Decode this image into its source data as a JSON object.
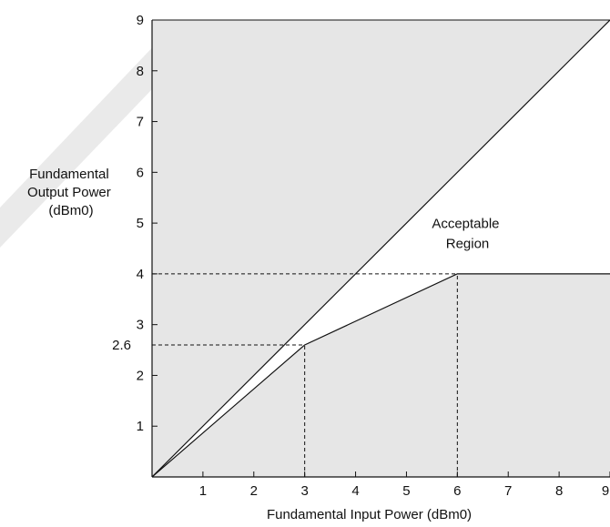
{
  "chart_data": {
    "type": "line",
    "xlabel": "Fundamental Input Power (dBm0)",
    "ylabel_lines": [
      "Fundamental",
      "Output Power",
      "(dBm0)"
    ],
    "xlim": [
      0,
      9
    ],
    "ylim": [
      0,
      9
    ],
    "x_ticks": [
      1,
      2,
      3,
      4,
      5,
      6,
      7,
      8,
      9
    ],
    "y_ticks": [
      1,
      2,
      3,
      4,
      5,
      6,
      7,
      8,
      9
    ],
    "extra_y_tick_label": "2.6",
    "grid": false,
    "region_label_lines": [
      "Acceptable",
      "Region"
    ],
    "region_label_position": [
      6.2,
      4.9
    ],
    "series": [
      {
        "values_xy": [
          [
            0,
            0
          ],
          [
            9,
            9
          ]
        ],
        "style": "solid"
      },
      {
        "values_xy": [
          [
            0,
            0
          ],
          [
            3,
            2.6
          ],
          [
            6,
            4
          ],
          [
            9,
            4
          ]
        ],
        "style": "solid"
      }
    ],
    "reference_lines": [
      {
        "from": [
          0,
          4
        ],
        "to": [
          6,
          4
        ],
        "style": "dashed"
      },
      {
        "from": [
          6,
          0
        ],
        "to": [
          6,
          4
        ],
        "style": "dashed"
      },
      {
        "from": [
          0,
          2.6
        ],
        "to": [
          3,
          2.6
        ],
        "style": "dashed"
      },
      {
        "from": [
          3,
          0
        ],
        "to": [
          3,
          2.6
        ],
        "style": "dashed"
      }
    ],
    "acceptable_region_polygon": [
      [
        0,
        0
      ],
      [
        3,
        2.6
      ],
      [
        6,
        4
      ],
      [
        9,
        4
      ],
      [
        9,
        9
      ]
    ],
    "colors": {
      "shade": "#e6e6e6",
      "region": "#ffffff",
      "line": "#111111",
      "watermark": "#d0d0d0"
    }
  }
}
